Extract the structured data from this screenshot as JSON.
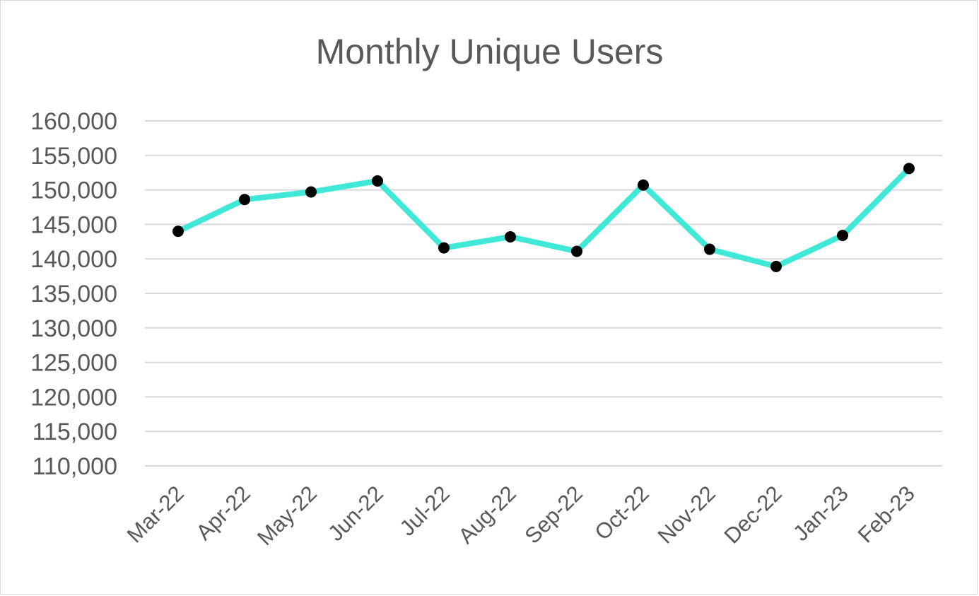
{
  "chart_data": {
    "type": "line",
    "title": "Monthly Unique Users",
    "xlabel": "",
    "ylabel": "",
    "categories": [
      "Mar-22",
      "Apr-22",
      "May-22",
      "Jun-22",
      "Jul-22",
      "Aug-22",
      "Sep-22",
      "Oct-22",
      "Nov-22",
      "Dec-22",
      "Jan-23",
      "Feb-23"
    ],
    "series": [
      {
        "values": [
          144000,
          148600,
          149700,
          151300,
          141600,
          143200,
          141100,
          150700,
          141400,
          138900,
          143400,
          153100
        ]
      }
    ],
    "ylim": [
      110000,
      160000
    ],
    "ytick_step": 5000,
    "yticks": [
      "110,000",
      "115,000",
      "120,000",
      "125,000",
      "130,000",
      "135,000",
      "140,000",
      "145,000",
      "150,000",
      "155,000",
      "160,000"
    ],
    "grid": true,
    "legend": "none",
    "colors": {
      "line": "#40E8D8",
      "marker": "#000000",
      "grid": "#d9d9d9",
      "text": "#595959"
    }
  }
}
